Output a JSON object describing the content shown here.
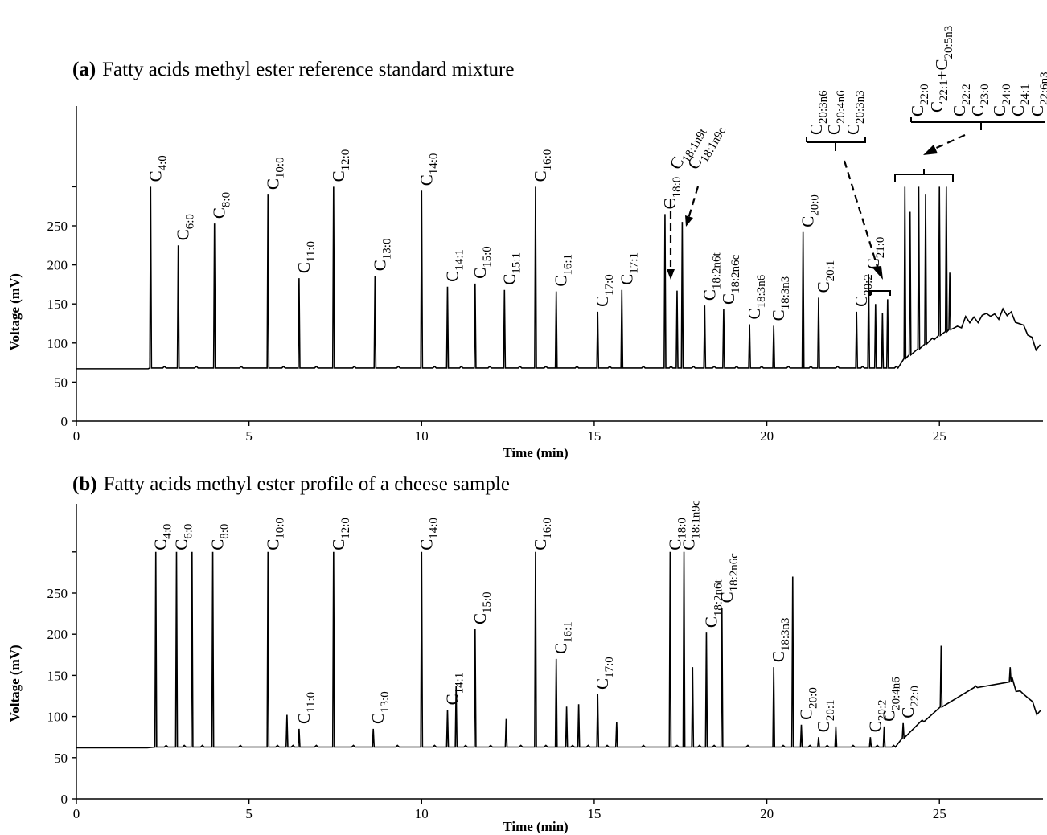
{
  "chart_data": [
    {
      "type": "line",
      "panel_tag": "(a)",
      "title": "Fatty acids methyl ester reference standard mixture",
      "xlabel": "Time (min)",
      "ylabel": "Voltage (mV)",
      "xlim": [
        0,
        28
      ],
      "ylim": [
        0,
        300
      ],
      "x_ticks": [
        0,
        5,
        10,
        15,
        20,
        25
      ],
      "y_ticks": [
        0,
        50,
        100,
        150,
        200,
        250
      ],
      "baseline": 67,
      "peaks": [
        {
          "label": "C4:0",
          "x": 2.15,
          "y": 300
        },
        {
          "label": "C6:0",
          "x": 2.95,
          "y": 225
        },
        {
          "label": "C8:0",
          "x": 4.0,
          "y": 253
        },
        {
          "label": "C10:0",
          "x": 5.55,
          "y": 290
        },
        {
          "label": "C11:0",
          "x": 6.45,
          "y": 183
        },
        {
          "label": "C12:0",
          "x": 7.45,
          "y": 300
        },
        {
          "label": "C13:0",
          "x": 8.65,
          "y": 186
        },
        {
          "label": "C14:0",
          "x": 10.0,
          "y": 295
        },
        {
          "label": "C14:1",
          "x": 10.75,
          "y": 172
        },
        {
          "label": "C15:0",
          "x": 11.55,
          "y": 176
        },
        {
          "label": "C15:1",
          "x": 12.4,
          "y": 168
        },
        {
          "label": "C16:0",
          "x": 13.3,
          "y": 300
        },
        {
          "label": "C16:1",
          "x": 13.9,
          "y": 166
        },
        {
          "label": "C17:0",
          "x": 15.1,
          "y": 140
        },
        {
          "label": "C17:1",
          "x": 15.8,
          "y": 168
        },
        {
          "label": "C18:0",
          "x": 17.05,
          "y": 265
        },
        {
          "label": "C18:1n9t",
          "x": 17.4,
          "y": 167
        },
        {
          "label": "C18:1n9c",
          "x": 17.55,
          "y": 255
        },
        {
          "label": "C18:2n6t",
          "x": 18.2,
          "y": 148
        },
        {
          "label": "C18:2n6c",
          "x": 18.75,
          "y": 143
        },
        {
          "label": "C18:3n6",
          "x": 19.5,
          "y": 124
        },
        {
          "label": "C18:3n3",
          "x": 20.2,
          "y": 122
        },
        {
          "label": "C20:0",
          "x": 21.05,
          "y": 242
        },
        {
          "label": "C20:1",
          "x": 21.5,
          "y": 158
        },
        {
          "label": "C20:2",
          "x": 22.6,
          "y": 140
        },
        {
          "label": "C21:0",
          "x": 22.95,
          "y": 188
        },
        {
          "label": "C20:3n6",
          "x": 23.15,
          "y": 150
        },
        {
          "label": "C20:4n6",
          "x": 23.35,
          "y": 138
        },
        {
          "label": "C20:3n3",
          "x": 23.5,
          "y": 156
        },
        {
          "label": "C22:0",
          "x": 24.0,
          "y": 300
        },
        {
          "label": "C22:1+C20:5n3",
          "x": 24.15,
          "y": 268
        },
        {
          "label": "C22:2",
          "x": 24.4,
          "y": 300
        },
        {
          "label": "C23:0",
          "x": 24.6,
          "y": 290
        },
        {
          "label": "C24:0",
          "x": 25.0,
          "y": 300
        },
        {
          "label": "C24:1",
          "x": 25.2,
          "y": 300
        },
        {
          "label": "C22:6n3",
          "x": 25.3,
          "y": 190
        }
      ],
      "annotations": [
        {
          "label": "C20:3n6 C20:4n6 C20:3n3",
          "points_to": "peaks 23.1–23.6 min"
        },
        {
          "label": "C22:0 C22:1+C20:5n3 C22:2 C23:0 C24:0 C24:1 C22:6n3",
          "points_to": "peaks 23.9–25.5 min"
        }
      ]
    },
    {
      "type": "line",
      "panel_tag": "(b)",
      "title": "Fatty acids methyl ester profile of a cheese sample",
      "xlabel": "Time (min)",
      "ylabel": "Voltage (mV)",
      "xlim": [
        0,
        28
      ],
      "ylim": [
        0,
        300
      ],
      "x_ticks": [
        0,
        5,
        10,
        15,
        20,
        25
      ],
      "y_ticks": [
        0,
        50,
        100,
        150,
        200,
        250
      ],
      "baseline": 62,
      "peaks": [
        {
          "label": "C4:0",
          "x": 2.3,
          "y": 300
        },
        {
          "label": "C6:0",
          "x": 2.9,
          "y": 300
        },
        {
          "label": "C8:0",
          "x": 3.95,
          "y": 300
        },
        {
          "label": "C10:0",
          "x": 5.55,
          "y": 300
        },
        {
          "label": "C11:0",
          "x": 6.45,
          "y": 85
        },
        {
          "label": "C12:0",
          "x": 7.45,
          "y": 300
        },
        {
          "label": "C13:0",
          "x": 8.6,
          "y": 85
        },
        {
          "label": "C14:0",
          "x": 10.0,
          "y": 300
        },
        {
          "label": "C14:1",
          "x": 10.75,
          "y": 108
        },
        {
          "label": "C15:0",
          "x": 11.55,
          "y": 206
        },
        {
          "label": "C16:0",
          "x": 13.3,
          "y": 300
        },
        {
          "label": "C16:1",
          "x": 13.9,
          "y": 170
        },
        {
          "label": "C17:0",
          "x": 15.1,
          "y": 127
        },
        {
          "label": "C18:0",
          "x": 17.2,
          "y": 300
        },
        {
          "label": "C18:1n9c",
          "x": 17.6,
          "y": 300
        },
        {
          "label": "C18:2n6t",
          "x": 18.25,
          "y": 202
        },
        {
          "label": "C18:2n6c",
          "x": 18.7,
          "y": 232
        },
        {
          "label": "C18:3n3",
          "x": 20.2,
          "y": 160
        },
        {
          "label": "C20:0",
          "x": 21.0,
          "y": 90
        },
        {
          "label": "C20:1",
          "x": 21.5,
          "y": 75
        },
        {
          "label": "C20:2",
          "x": 23.0,
          "y": 75
        },
        {
          "label": "C20:4n6",
          "x": 23.4,
          "y": 88
        },
        {
          "label": "C22:0",
          "x": 23.95,
          "y": 92
        }
      ],
      "unlabeled_peaks": [
        {
          "x": 3.35,
          "y": 300
        },
        {
          "x": 6.1,
          "y": 102
        },
        {
          "x": 11.0,
          "y": 137
        },
        {
          "x": 14.2,
          "y": 112
        },
        {
          "x": 14.55,
          "y": 115
        },
        {
          "x": 12.45,
          "y": 97
        },
        {
          "x": 15.65,
          "y": 93
        },
        {
          "x": 17.85,
          "y": 160
        },
        {
          "x": 20.75,
          "y": 270
        },
        {
          "x": 22.0,
          "y": 88
        },
        {
          "x": 25.05,
          "y": 186
        },
        {
          "x": 27.05,
          "y": 160
        }
      ]
    }
  ]
}
